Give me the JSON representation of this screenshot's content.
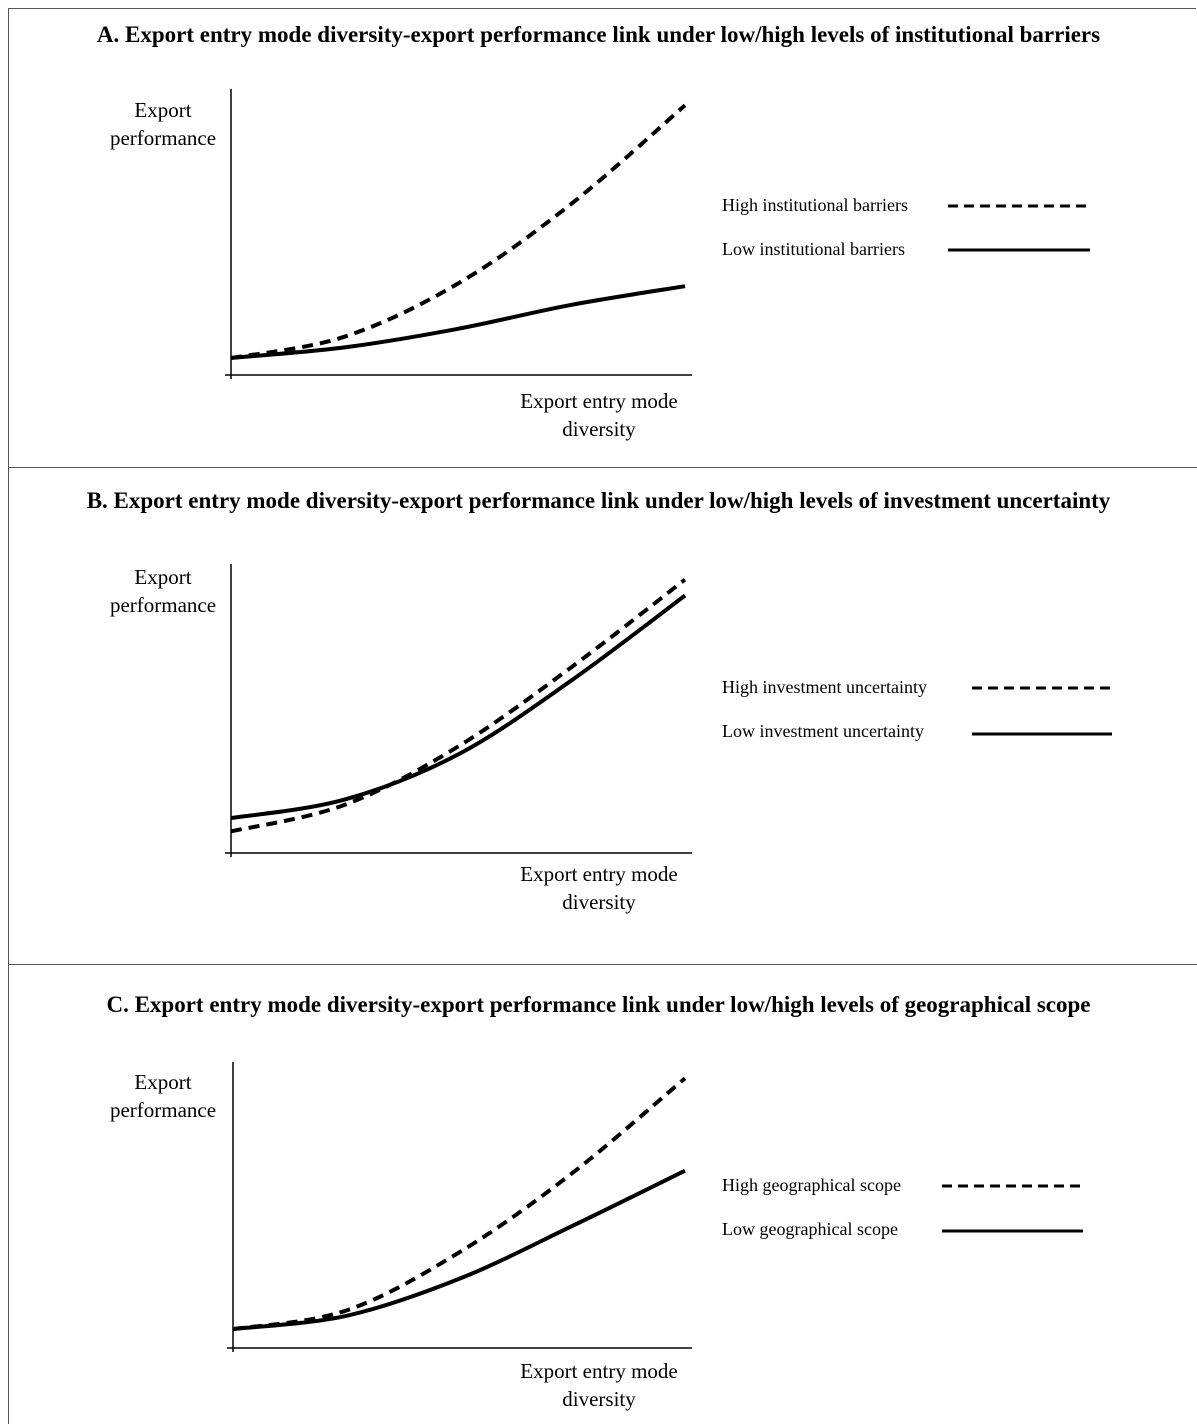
{
  "panels": [
    {
      "title": "A. Export entry mode diversity-export performance link under low/high levels of institutional barriers",
      "ylabel": [
        "Export",
        "performance"
      ],
      "xlabel": [
        "Export entry mode",
        "diversity"
      ],
      "legend": [
        "High institutional barriers",
        "Low institutional barriers"
      ]
    },
    {
      "title": "B. Export entry mode diversity-export performance link under low/high levels of investment uncertainty",
      "ylabel": [
        "Export",
        "performance"
      ],
      "xlabel": [
        "Export entry mode",
        "diversity"
      ],
      "legend": [
        "High investment uncertainty",
        "Low investment uncertainty"
      ]
    },
    {
      "title": "C. Export entry mode diversity-export performance link under low/high levels of geographical scope",
      "ylabel": [
        "Export",
        "performance"
      ],
      "xlabel": [
        "Export entry mode",
        "diversity"
      ],
      "legend": [
        "High geographical scope",
        "Low geographical scope"
      ]
    }
  ],
  "chart_data": [
    {
      "type": "line",
      "title": "A. Export entry mode diversity-export performance link under low/high levels of institutional barriers",
      "xlabel": "Export entry mode diversity",
      "ylabel": "Export performance",
      "xlim": [
        0,
        1
      ],
      "ylim": [
        0,
        1
      ],
      "x": [
        0,
        0.25,
        0.5,
        0.75,
        1
      ],
      "series": [
        {
          "name": "High institutional barriers",
          "style": "dashed",
          "values": [
            0.03,
            0.11,
            0.31,
            0.61,
            0.98
          ]
        },
        {
          "name": "Low institutional barriers",
          "style": "solid",
          "values": [
            0.03,
            0.07,
            0.14,
            0.23,
            0.3
          ]
        }
      ]
    },
    {
      "type": "line",
      "title": "B. Export entry mode diversity-export performance link under low/high levels of investment uncertainty",
      "xlabel": "Export entry mode diversity",
      "ylabel": "Export performance",
      "xlim": [
        0,
        1
      ],
      "ylim": [
        0,
        1
      ],
      "x": [
        0,
        0.25,
        0.5,
        0.75,
        1
      ],
      "series": [
        {
          "name": "High investment uncertainty",
          "style": "dashed",
          "values": [
            0.04,
            0.14,
            0.36,
            0.66,
            0.99
          ]
        },
        {
          "name": "Low investment uncertainty",
          "style": "solid",
          "values": [
            0.09,
            0.16,
            0.33,
            0.61,
            0.93
          ]
        }
      ]
    },
    {
      "type": "line",
      "title": "C. Export entry mode diversity-export performance link under low/high levels of geographical scope",
      "xlabel": "Export entry mode diversity",
      "ylabel": "Export performance",
      "xlim": [
        0,
        1
      ],
      "ylim": [
        0,
        1
      ],
      "x": [
        0,
        0.25,
        0.5,
        0.75,
        1
      ],
      "series": [
        {
          "name": "High geographical scope",
          "style": "dashed",
          "values": [
            0.03,
            0.1,
            0.32,
            0.62,
            0.98
          ]
        },
        {
          "name": "Low geographical scope",
          "style": "solid",
          "values": [
            0.03,
            0.08,
            0.22,
            0.42,
            0.63
          ]
        }
      ]
    }
  ]
}
